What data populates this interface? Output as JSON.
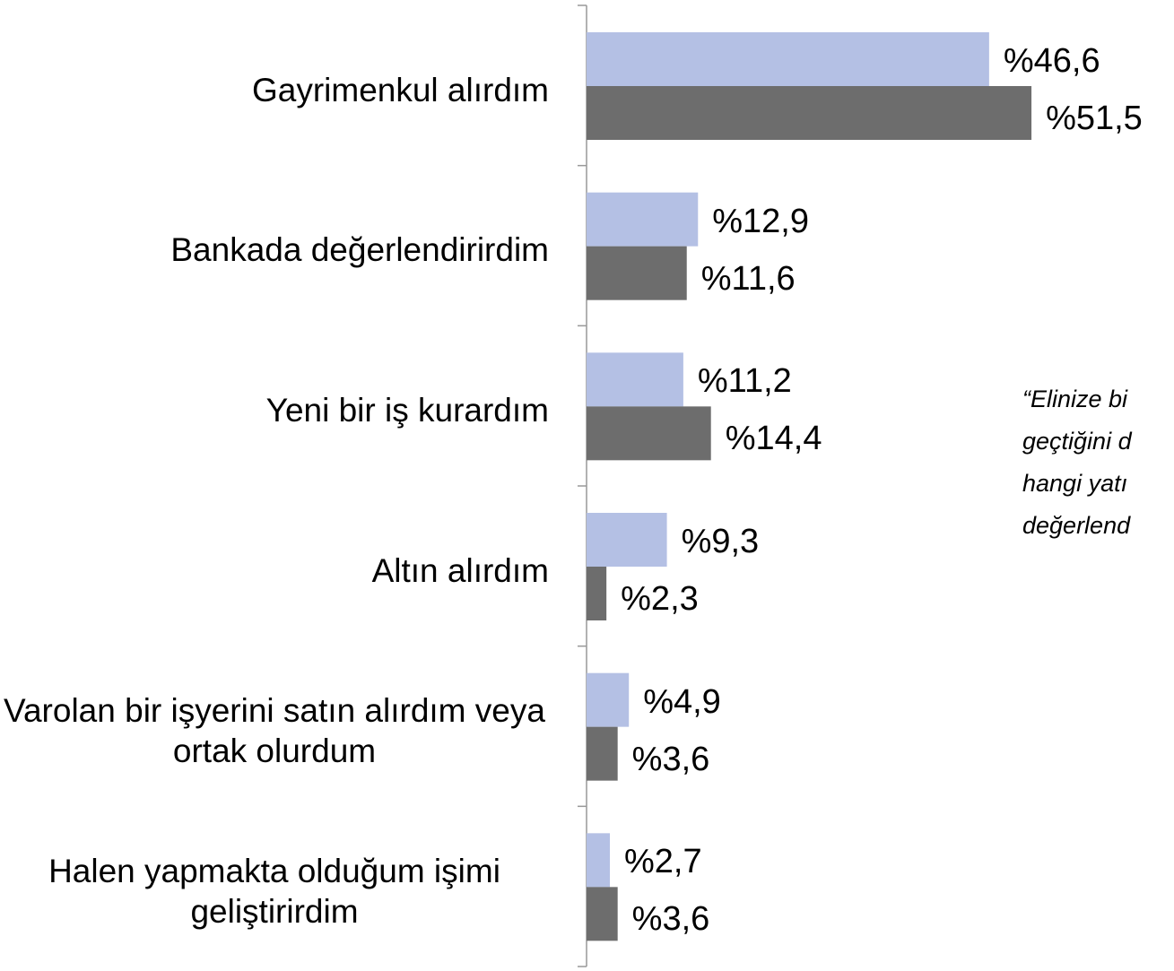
{
  "chart_data": {
    "type": "bar",
    "orientation": "horizontal",
    "categories": [
      "Gayrimenkul alırdım",
      "Bankada değerlendirirdim",
      "Yeni bir iş kurardım",
      "Altın alırdım",
      "Varolan bir işyerini satın alırdım veya ortak olurdum",
      "Halen yapmakta olduğum işimi geliştirirdim"
    ],
    "series": [
      {
        "color": "#b4c0e4",
        "values": [
          46.6,
          12.9,
          11.2,
          9.3,
          4.9,
          2.7
        ],
        "value_labels": [
          "%46,6",
          "%12,9",
          "%11,2",
          "%9,3",
          "%4,9",
          "%2,7"
        ]
      },
      {
        "color": "#6d6d6d",
        "values": [
          51.5,
          11.6,
          14.4,
          2.3,
          3.6,
          3.6
        ],
        "value_labels": [
          "%51,5",
          "%11,6",
          "%14,4",
          "%2,3",
          "%3,6",
          "%3,6"
        ]
      }
    ],
    "xlim": [
      0,
      68
    ],
    "annotation": [
      "“Elinize bi",
      "geçtiğini d",
      "hangi yatı",
      "değerlend"
    ]
  }
}
